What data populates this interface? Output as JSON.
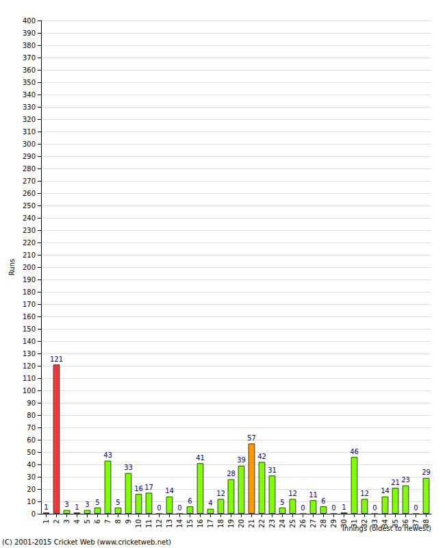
{
  "chart_data": {
    "type": "bar",
    "ylabel": "Runs",
    "xlabel": "Innings (oldest to newest)",
    "annotation": "(C) 2001-2015 Cricket Web (www.cricketweb.net)",
    "categories": [
      "1",
      "2",
      "3",
      "4",
      "5",
      "6",
      "7",
      "8",
      "9",
      "10",
      "11",
      "12",
      "13",
      "14",
      "15",
      "16",
      "17",
      "18",
      "19",
      "20",
      "21",
      "22",
      "23",
      "24",
      "25",
      "26",
      "27",
      "28",
      "29",
      "30",
      "31",
      "32",
      "33",
      "34",
      "35",
      "36",
      "37",
      "38"
    ],
    "values": [
      1,
      121,
      3,
      1,
      3,
      5,
      43,
      5,
      33,
      16,
      17,
      0,
      14,
      0,
      6,
      41,
      4,
      12,
      28,
      39,
      57,
      42,
      31,
      5,
      12,
      0,
      11,
      6,
      0,
      1,
      46,
      12,
      0,
      14,
      21,
      23,
      0,
      29
    ],
    "colors": [
      "#80ff00",
      "#ff3333",
      "#80ff00",
      "#80ff00",
      "#80ff00",
      "#80ff00",
      "#80ff00",
      "#80ff00",
      "#80ff00",
      "#80ff00",
      "#80ff00",
      "#80ff00",
      "#80ff00",
      "#80ff00",
      "#80ff00",
      "#80ff00",
      "#80ff00",
      "#80ff00",
      "#80ff00",
      "#80ff00",
      "#ff9900",
      "#80ff00",
      "#80ff00",
      "#80ff00",
      "#80ff00",
      "#80ff00",
      "#80ff00",
      "#80ff00",
      "#80ff00",
      "#80ff00",
      "#80ff00",
      "#80ff00",
      "#80ff00",
      "#80ff00",
      "#80ff00",
      "#80ff00",
      "#80ff00",
      "#80ff00"
    ],
    "ylim": [
      0,
      400
    ],
    "yticks": [
      0,
      10,
      20,
      30,
      40,
      50,
      60,
      70,
      80,
      90,
      100,
      110,
      120,
      130,
      140,
      150,
      160,
      170,
      180,
      190,
      200,
      210,
      220,
      230,
      240,
      250,
      260,
      270,
      280,
      290,
      300,
      310,
      320,
      330,
      340,
      350,
      360,
      370,
      380,
      390,
      400
    ],
    "grid": true,
    "data_labels": true
  }
}
